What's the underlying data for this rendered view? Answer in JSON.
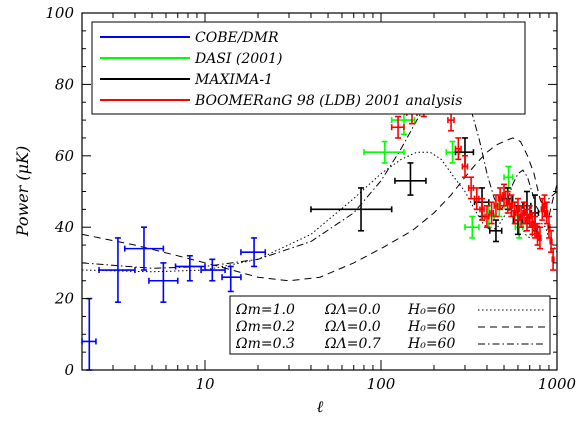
{
  "chart_data": {
    "type": "scatter",
    "title": "",
    "xlabel": "ℓ",
    "ylabel": "Power (μK)",
    "xscale": "log",
    "xlim": [
      2,
      1000
    ],
    "ylim": [
      0,
      100
    ],
    "x_ticks": [
      10,
      100,
      1000
    ],
    "x_tick_labels": [
      "10",
      "100",
      "1000"
    ],
    "y_ticks": [
      0,
      20,
      40,
      60,
      80,
      100
    ],
    "y_tick_labels": [
      "0",
      "20",
      "40",
      "60",
      "80",
      "100"
    ],
    "grid": false,
    "legend_position": "top-left",
    "series": [
      {
        "name": "COBE/DMR",
        "color": "#0000ff",
        "points": [
          {
            "x": 2.2,
            "y": 8,
            "xlo": 2.0,
            "xhi": 2.4,
            "ylo": 0,
            "yhi": 20
          },
          {
            "x": 3.2,
            "y": 28,
            "xlo": 2.5,
            "xhi": 4.0,
            "ylo": 19,
            "yhi": 37
          },
          {
            "x": 4.5,
            "y": 34,
            "xlo": 3.5,
            "xhi": 5.8,
            "ylo": 28,
            "yhi": 40
          },
          {
            "x": 5.8,
            "y": 25,
            "xlo": 4.8,
            "xhi": 7.0,
            "ylo": 19,
            "yhi": 30
          },
          {
            "x": 8.2,
            "y": 29,
            "xlo": 6.8,
            "xhi": 10.0,
            "ylo": 25,
            "yhi": 32
          },
          {
            "x": 11,
            "y": 28,
            "xlo": 9.5,
            "xhi": 13.0,
            "ylo": 25,
            "yhi": 31
          },
          {
            "x": 14,
            "y": 26,
            "xlo": 12.5,
            "xhi": 16.0,
            "ylo": 22,
            "yhi": 29
          },
          {
            "x": 19,
            "y": 33,
            "xlo": 16.0,
            "xhi": 22.0,
            "ylo": 29,
            "yhi": 37
          }
        ]
      },
      {
        "name": "DASI (2001)",
        "color": "#00ff00",
        "points": [
          {
            "x": 105,
            "y": 61,
            "xlo": 80,
            "xhi": 135,
            "ylo": 58,
            "yhi": 64
          },
          {
            "x": 135,
            "y": 70,
            "xlo": 115,
            "xhi": 155,
            "ylo": 66,
            "yhi": 74
          },
          {
            "x": 175,
            "y": 74,
            "xlo": 155,
            "xhi": 195,
            "ylo": 71,
            "yhi": 77
          },
          {
            "x": 205,
            "y": 76,
            "xlo": 185,
            "xhi": 225,
            "ylo": 73,
            "yhi": 79
          },
          {
            "x": 255,
            "y": 61,
            "xlo": 235,
            "xhi": 280,
            "ylo": 58,
            "yhi": 64
          },
          {
            "x": 330,
            "y": 40,
            "xlo": 300,
            "xhi": 360,
            "ylo": 37,
            "yhi": 43
          },
          {
            "x": 410,
            "y": 43,
            "xlo": 380,
            "xhi": 440,
            "ylo": 40,
            "yhi": 46
          },
          {
            "x": 470,
            "y": 46,
            "xlo": 440,
            "xhi": 500,
            "ylo": 43,
            "yhi": 49
          },
          {
            "x": 530,
            "y": 54,
            "xlo": 500,
            "xhi": 560,
            "ylo": 51,
            "yhi": 57
          },
          {
            "x": 610,
            "y": 40,
            "xlo": 580,
            "xhi": 640,
            "ylo": 37,
            "yhi": 43
          }
        ]
      },
      {
        "name": "MAXIMA-1",
        "color": "#000000",
        "points": [
          {
            "x": 77,
            "y": 45,
            "xlo": 40,
            "xhi": 115,
            "ylo": 39,
            "yhi": 51
          },
          {
            "x": 147,
            "y": 53,
            "xlo": 120,
            "xhi": 180,
            "ylo": 49,
            "yhi": 58
          },
          {
            "x": 223,
            "y": 78,
            "xlo": 190,
            "xhi": 260,
            "ylo": 73,
            "yhi": 84
          },
          {
            "x": 300,
            "y": 61,
            "xlo": 265,
            "xhi": 335,
            "ylo": 57,
            "yhi": 65
          },
          {
            "x": 375,
            "y": 47,
            "xlo": 340,
            "xhi": 410,
            "ylo": 43,
            "yhi": 51
          },
          {
            "x": 450,
            "y": 39,
            "xlo": 415,
            "xhi": 485,
            "ylo": 36,
            "yhi": 42
          },
          {
            "x": 525,
            "y": 48,
            "xlo": 490,
            "xhi": 560,
            "ylo": 45,
            "yhi": 51
          },
          {
            "x": 600,
            "y": 42,
            "xlo": 565,
            "xhi": 635,
            "ylo": 38,
            "yhi": 46
          },
          {
            "x": 675,
            "y": 46,
            "xlo": 640,
            "xhi": 710,
            "ylo": 41,
            "yhi": 50
          },
          {
            "x": 750,
            "y": 44,
            "xlo": 715,
            "xhi": 785,
            "ylo": 39,
            "yhi": 49
          }
        ]
      },
      {
        "name": "BOOMERanG 98 (LDB) 2001 analysis",
        "color": "#ff0000",
        "points": [
          {
            "x": 125,
            "y": 68,
            "xlo": 115,
            "xhi": 135,
            "ylo": 65,
            "yhi": 71
          },
          {
            "x": 150,
            "y": 72,
            "xlo": 140,
            "xhi": 160,
            "ylo": 69,
            "yhi": 75
          },
          {
            "x": 175,
            "y": 74,
            "xlo": 165,
            "xhi": 185,
            "ylo": 71,
            "yhi": 77
          },
          {
            "x": 200,
            "y": 76,
            "xlo": 190,
            "xhi": 210,
            "ylo": 73,
            "yhi": 79
          },
          {
            "x": 225,
            "y": 75,
            "xlo": 215,
            "xhi": 235,
            "ylo": 72,
            "yhi": 78
          },
          {
            "x": 250,
            "y": 70,
            "xlo": 240,
            "xhi": 260,
            "ylo": 67,
            "yhi": 73
          },
          {
            "x": 275,
            "y": 62,
            "xlo": 265,
            "xhi": 285,
            "ylo": 59,
            "yhi": 65
          },
          {
            "x": 300,
            "y": 57,
            "xlo": 290,
            "xhi": 310,
            "ylo": 54,
            "yhi": 60
          },
          {
            "x": 325,
            "y": 51,
            "xlo": 315,
            "xhi": 335,
            "ylo": 48,
            "yhi": 54
          },
          {
            "x": 350,
            "y": 48,
            "xlo": 340,
            "xhi": 360,
            "ylo": 45,
            "yhi": 51
          },
          {
            "x": 375,
            "y": 45,
            "xlo": 365,
            "xhi": 385,
            "ylo": 42,
            "yhi": 48
          },
          {
            "x": 400,
            "y": 43,
            "xlo": 390,
            "xhi": 410,
            "ylo": 40,
            "yhi": 46
          },
          {
            "x": 425,
            "y": 44,
            "xlo": 415,
            "xhi": 435,
            "ylo": 41,
            "yhi": 47
          },
          {
            "x": 450,
            "y": 46,
            "xlo": 440,
            "xhi": 460,
            "ylo": 43,
            "yhi": 49
          },
          {
            "x": 475,
            "y": 48,
            "xlo": 465,
            "xhi": 485,
            "ylo": 45,
            "yhi": 51
          },
          {
            "x": 500,
            "y": 49,
            "xlo": 490,
            "xhi": 510,
            "ylo": 46,
            "yhi": 52
          },
          {
            "x": 525,
            "y": 47,
            "xlo": 515,
            "xhi": 535,
            "ylo": 44,
            "yhi": 50
          },
          {
            "x": 550,
            "y": 46,
            "xlo": 540,
            "xhi": 560,
            "ylo": 43,
            "yhi": 49
          },
          {
            "x": 575,
            "y": 44,
            "xlo": 565,
            "xhi": 585,
            "ylo": 41,
            "yhi": 47
          },
          {
            "x": 600,
            "y": 45,
            "xlo": 590,
            "xhi": 610,
            "ylo": 42,
            "yhi": 48
          },
          {
            "x": 625,
            "y": 43,
            "xlo": 615,
            "xhi": 635,
            "ylo": 40,
            "yhi": 46
          },
          {
            "x": 650,
            "y": 44,
            "xlo": 640,
            "xhi": 660,
            "ylo": 41,
            "yhi": 47
          },
          {
            "x": 675,
            "y": 42,
            "xlo": 665,
            "xhi": 685,
            "ylo": 39,
            "yhi": 45
          },
          {
            "x": 700,
            "y": 43,
            "xlo": 690,
            "xhi": 710,
            "ylo": 40,
            "yhi": 46
          },
          {
            "x": 725,
            "y": 41,
            "xlo": 715,
            "xhi": 735,
            "ylo": 38,
            "yhi": 44
          },
          {
            "x": 750,
            "y": 40,
            "xlo": 740,
            "xhi": 760,
            "ylo": 37,
            "yhi": 43
          },
          {
            "x": 775,
            "y": 38,
            "xlo": 765,
            "xhi": 785,
            "ylo": 35,
            "yhi": 41
          },
          {
            "x": 800,
            "y": 37,
            "xlo": 790,
            "xhi": 810,
            "ylo": 34,
            "yhi": 40
          },
          {
            "x": 825,
            "y": 45,
            "xlo": 815,
            "xhi": 835,
            "ylo": 42,
            "yhi": 48
          },
          {
            "x": 850,
            "y": 46,
            "xlo": 840,
            "xhi": 860,
            "ylo": 43,
            "yhi": 49
          },
          {
            "x": 875,
            "y": 44,
            "xlo": 865,
            "xhi": 885,
            "ylo": 41,
            "yhi": 47
          },
          {
            "x": 900,
            "y": 40,
            "xlo": 890,
            "xhi": 910,
            "ylo": 37,
            "yhi": 43
          },
          {
            "x": 925,
            "y": 36,
            "xlo": 915,
            "xhi": 935,
            "ylo": 33,
            "yhi": 39
          },
          {
            "x": 950,
            "y": 31,
            "xlo": 940,
            "xhi": 960,
            "ylo": 28,
            "yhi": 34
          }
        ]
      }
    ],
    "models": [
      {
        "omega_m_label": "Ωm=1.0",
        "omega_l_label": "ΩΛ=0.0",
        "h0_label": "H₀=60",
        "line_style": "dotted",
        "curve": [
          [
            2,
            28
          ],
          [
            5,
            27.5
          ],
          [
            10,
            28
          ],
          [
            20,
            31
          ],
          [
            40,
            38
          ],
          [
            70,
            48
          ],
          [
            100,
            55
          ],
          [
            130,
            59
          ],
          [
            160,
            61
          ],
          [
            190,
            61
          ],
          [
            220,
            59
          ],
          [
            260,
            54
          ],
          [
            300,
            50
          ],
          [
            340,
            45
          ],
          [
            380,
            41
          ],
          [
            420,
            39
          ],
          [
            460,
            40
          ],
          [
            500,
            43
          ],
          [
            540,
            45
          ],
          [
            580,
            44
          ],
          [
            620,
            41
          ],
          [
            660,
            38
          ],
          [
            700,
            37
          ],
          [
            740,
            38
          ],
          [
            780,
            40
          ],
          [
            820,
            41
          ],
          [
            860,
            40
          ],
          [
            900,
            37
          ],
          [
            1000,
            33
          ]
        ]
      },
      {
        "omega_m_label": "Ωm=0.2",
        "omega_l_label": "ΩΛ=0.0",
        "h0_label": "H₀=60",
        "line_style": "dashed",
        "curve": [
          [
            2,
            38
          ],
          [
            4,
            35
          ],
          [
            7,
            32
          ],
          [
            12,
            29
          ],
          [
            20,
            26
          ],
          [
            30,
            25
          ],
          [
            45,
            26
          ],
          [
            70,
            30
          ],
          [
            100,
            34
          ],
          [
            150,
            39
          ],
          [
            200,
            44
          ],
          [
            250,
            49
          ],
          [
            300,
            54
          ],
          [
            350,
            58
          ],
          [
            400,
            61
          ],
          [
            450,
            63
          ],
          [
            500,
            64
          ],
          [
            560,
            65
          ],
          [
            620,
            64
          ],
          [
            680,
            60
          ],
          [
            740,
            55
          ],
          [
            800,
            48
          ],
          [
            860,
            44
          ],
          [
            900,
            43
          ],
          [
            950,
            48
          ],
          [
            1000,
            52
          ]
        ]
      },
      {
        "omega_m_label": "Ωm=0.3",
        "omega_l_label": "ΩΛ=0.7",
        "h0_label": "H₀=60",
        "line_style": "dashdot",
        "curve": [
          [
            2,
            30
          ],
          [
            5,
            28.5
          ],
          [
            10,
            29
          ],
          [
            20,
            31
          ],
          [
            40,
            36
          ],
          [
            70,
            44
          ],
          [
            100,
            53
          ],
          [
            130,
            62
          ],
          [
            160,
            70
          ],
          [
            190,
            76
          ],
          [
            220,
            81
          ],
          [
            250,
            82
          ],
          [
            280,
            80
          ],
          [
            320,
            74
          ],
          [
            360,
            65
          ],
          [
            400,
            55
          ],
          [
            440,
            48
          ],
          [
            480,
            45
          ],
          [
            520,
            47
          ],
          [
            560,
            52
          ],
          [
            600,
            55
          ],
          [
            640,
            56
          ],
          [
            680,
            54
          ],
          [
            720,
            50
          ],
          [
            760,
            46
          ],
          [
            800,
            44
          ],
          [
            850,
            45
          ],
          [
            900,
            48
          ],
          [
            1000,
            50
          ]
        ]
      }
    ]
  }
}
